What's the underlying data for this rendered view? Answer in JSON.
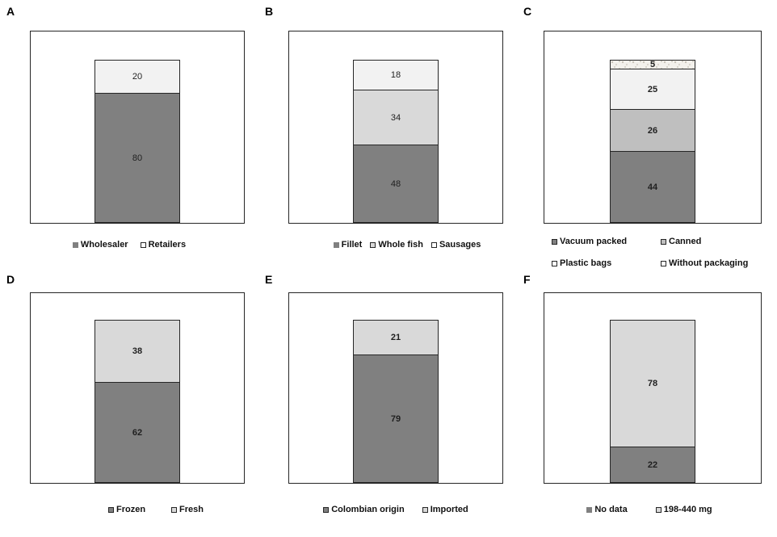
{
  "figure": {
    "background": "#ffffff"
  },
  "chart_data": [
    {
      "type": "bar",
      "panel_label": "A",
      "stacked": true,
      "units": "percent",
      "ylim": [
        0,
        100
      ],
      "grid": false,
      "value_labels_bold": false,
      "segments_top_to_bottom": [
        {
          "label": "Retailers",
          "value": 20,
          "color": "#f2f2f2"
        },
        {
          "label": "Wholesaler",
          "value": 80,
          "color": "#808080"
        }
      ],
      "legend": {
        "position": "bottom-center",
        "rows": [
          [
            {
              "label": "Wholesaler",
              "swatch_color": "#808080",
              "swatch_border": "#808080"
            },
            {
              "label": "Retailers",
              "swatch_color": "#ffffff",
              "swatch_border": "#262626"
            }
          ]
        ]
      }
    },
    {
      "type": "bar",
      "panel_label": "B",
      "stacked": true,
      "units": "percent",
      "ylim": [
        0,
        100
      ],
      "grid": false,
      "value_labels_bold": false,
      "segments_top_to_bottom": [
        {
          "label": "Sausages",
          "value": 18,
          "color": "#f2f2f2"
        },
        {
          "label": "Whole fish",
          "value": 34,
          "color": "#d9d9d9"
        },
        {
          "label": "Fillet",
          "value": 48,
          "color": "#808080"
        }
      ],
      "legend": {
        "position": "bottom-center",
        "rows": [
          [
            {
              "label": "Fillet",
              "swatch_color": "#808080",
              "swatch_border": "#808080"
            },
            {
              "label": "Whole fish",
              "swatch_color": "#d9d9d9",
              "swatch_border": "#262626"
            },
            {
              "label": "Sausages",
              "swatch_color": "#ffffff",
              "swatch_border": "#262626"
            }
          ]
        ]
      }
    },
    {
      "type": "bar",
      "panel_label": "C",
      "stacked": true,
      "units": "percent",
      "ylim": [
        0,
        100
      ],
      "grid": false,
      "value_labels_bold": true,
      "segments_top_to_bottom": [
        {
          "label": "Without packaging",
          "value": 5,
          "color": "#f3f1ec",
          "pattern": "speckle"
        },
        {
          "label": "Plastic bags",
          "value": 25,
          "color": "#f2f2f2"
        },
        {
          "label": "Canned",
          "value": 26,
          "color": "#bfbfbf"
        },
        {
          "label": "Vacuum packed",
          "value": 44,
          "color": "#808080"
        }
      ],
      "legend": {
        "position": "bottom-two-columns",
        "rows": [
          [
            {
              "label": "Vacuum packed",
              "swatch_color": "#808080",
              "swatch_border": "#262626"
            },
            {
              "label": "Canned",
              "swatch_color": "#bfbfbf",
              "swatch_border": "#262626"
            }
          ],
          [
            {
              "label": "Plastic bags",
              "swatch_color": "#ffffff",
              "swatch_border": "#262626"
            },
            {
              "label": "Without packaging",
              "swatch_color": "#ffffff",
              "swatch_border": "#262626"
            }
          ]
        ]
      }
    },
    {
      "type": "bar",
      "panel_label": "D",
      "stacked": true,
      "units": "percent",
      "ylim": [
        0,
        100
      ],
      "grid": false,
      "value_labels_bold": true,
      "segments_top_to_bottom": [
        {
          "label": "Fresh",
          "value": 38,
          "color": "#d9d9d9"
        },
        {
          "label": "Frozen",
          "value": 62,
          "color": "#808080"
        }
      ],
      "legend": {
        "position": "bottom-center",
        "rows": [
          [
            {
              "label": "Frozen",
              "swatch_color": "#808080",
              "swatch_border": "#262626"
            },
            {
              "label": "Fresh",
              "swatch_color": "#d9d9d9",
              "swatch_border": "#262626"
            }
          ]
        ]
      }
    },
    {
      "type": "bar",
      "panel_label": "E",
      "stacked": true,
      "units": "percent",
      "ylim": [
        0,
        100
      ],
      "grid": false,
      "value_labels_bold": true,
      "segments_top_to_bottom": [
        {
          "label": "Imported",
          "value": 21,
          "color": "#d9d9d9"
        },
        {
          "label": "Colombian origin",
          "value": 79,
          "color": "#808080"
        }
      ],
      "legend": {
        "position": "bottom-center",
        "rows": [
          [
            {
              "label": "Colombian origin",
              "swatch_color": "#808080",
              "swatch_border": "#262626"
            },
            {
              "label": "Imported",
              "swatch_color": "#d9d9d9",
              "swatch_border": "#262626"
            }
          ]
        ]
      }
    },
    {
      "type": "bar",
      "panel_label": "F",
      "stacked": true,
      "units": "percent",
      "ylim": [
        0,
        100
      ],
      "grid": false,
      "value_labels_bold": true,
      "segments_top_to_bottom": [
        {
          "label": "198-440 mg",
          "value": 78,
          "color": "#d9d9d9"
        },
        {
          "label": "No data",
          "value": 22,
          "color": "#808080"
        }
      ],
      "legend": {
        "position": "bottom-center",
        "rows": [
          [
            {
              "label": "No data",
              "swatch_color": "#808080",
              "swatch_border": "#808080"
            },
            {
              "label": "198-440 mg",
              "swatch_color": "#d9d9d9",
              "swatch_border": "#262626"
            }
          ]
        ]
      }
    }
  ]
}
